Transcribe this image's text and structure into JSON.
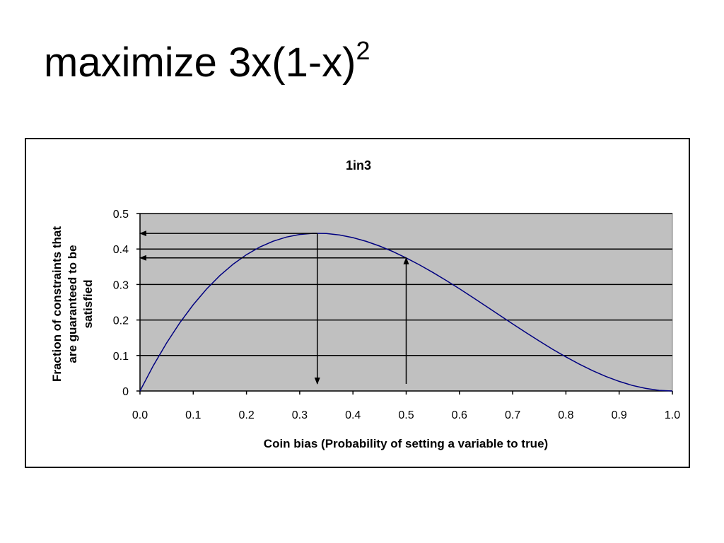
{
  "slide": {
    "title_base": "maximize 3x(1-x)",
    "title_sup": "2"
  },
  "chart_data": {
    "type": "line",
    "title": "1in3",
    "xlabel": "Coin bias (Probability of setting a variable to true)",
    "ylabel_lines": [
      "Fraction of constraints that",
      "are guaranteed to be",
      "satisfied"
    ],
    "xlim": [
      0.0,
      1.0
    ],
    "ylim": [
      0,
      0.5
    ],
    "x_ticks": [
      0.0,
      0.1,
      0.2,
      0.3,
      0.4,
      0.5,
      0.6,
      0.7,
      0.8,
      0.9,
      1.0
    ],
    "x_tick_labels": [
      "0.0",
      "0.1",
      "0.2",
      "0.3",
      "0.4",
      "0.5",
      "0.6",
      "0.7",
      "0.8",
      "0.9",
      "1.0"
    ],
    "y_ticks": [
      0,
      0.1,
      0.2,
      0.3,
      0.4,
      0.5
    ],
    "y_tick_labels": [
      "0",
      "0.1",
      "0.2",
      "0.3",
      "0.4",
      "0.5"
    ],
    "grid": "horizontal",
    "plot_background": "#c0c0c0",
    "series": [
      {
        "color": "#000080",
        "x": [
          0,
          0.025,
          0.05,
          0.075,
          0.1,
          0.125,
          0.15,
          0.175,
          0.2,
          0.225,
          0.25,
          0.275,
          0.3,
          0.325,
          0.35,
          0.375,
          0.4,
          0.425,
          0.45,
          0.475,
          0.5,
          0.525,
          0.55,
          0.575,
          0.6,
          0.625,
          0.65,
          0.675,
          0.7,
          0.725,
          0.75,
          0.775,
          0.8,
          0.825,
          0.85,
          0.875,
          0.9,
          0.925,
          0.95,
          0.975,
          1.0
        ],
        "y": [
          0,
          0.0713,
          0.1354,
          0.1926,
          0.243,
          0.2871,
          0.3251,
          0.3573,
          0.384,
          0.4055,
          0.4219,
          0.4337,
          0.441,
          0.4442,
          0.4436,
          0.4395,
          0.432,
          0.4216,
          0.4084,
          0.3928,
          0.375,
          0.3553,
          0.3341,
          0.3115,
          0.288,
          0.2637,
          0.2389,
          0.2139,
          0.189,
          0.1645,
          0.1406,
          0.1176,
          0.096,
          0.0759,
          0.0574,
          0.041,
          0.027,
          0.0156,
          0.0071,
          0.0018,
          0
        ]
      }
    ],
    "annotations": [
      {
        "type": "arrow",
        "from": [
          0.333,
          0.444
        ],
        "to": [
          0.0,
          0.444
        ]
      },
      {
        "type": "arrow",
        "from": [
          0.333,
          0.444
        ],
        "to": [
          0.333,
          0.02
        ]
      },
      {
        "type": "arrow",
        "from": [
          0.5,
          0.02
        ],
        "to": [
          0.5,
          0.375
        ]
      },
      {
        "type": "arrow",
        "from": [
          0.5,
          0.375
        ],
        "to": [
          0.0,
          0.375
        ]
      }
    ]
  }
}
